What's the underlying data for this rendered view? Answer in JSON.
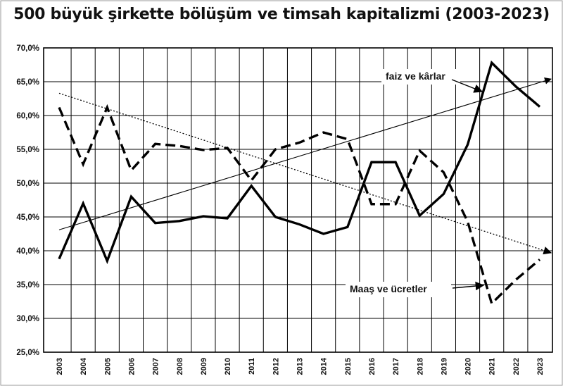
{
  "chart_data": {
    "type": "line",
    "title": "500 büyük şirkette bölüşüm ve timsah kapitalizmi (2003-2023)",
    "xlabel": "",
    "ylabel": "",
    "x": [
      "2003",
      "2004",
      "2005",
      "2006",
      "2007",
      "2008",
      "2009",
      "2010",
      "2011",
      "2012",
      "2013",
      "2014",
      "2015",
      "2016",
      "2017",
      "2018",
      "2019",
      "2020",
      "2021",
      "2022",
      "2023"
    ],
    "ylim": [
      25,
      70
    ],
    "yticks": [
      "25,0%",
      "30,0%",
      "35,0%",
      "40,0%",
      "45,0%",
      "50,0%",
      "55,0%",
      "60,0%",
      "65,0%",
      "70,0%"
    ],
    "grid": true,
    "series": [
      {
        "name": "faiz ve kârlar",
        "style": "solid",
        "color": "#000000",
        "values": [
          38.8,
          47.0,
          38.5,
          48.0,
          44.1,
          44.4,
          45.1,
          44.8,
          49.6,
          45.0,
          43.9,
          42.5,
          43.5,
          53.1,
          53.1,
          45.2,
          48.4,
          55.7,
          67.8,
          64.3,
          61.3
        ]
      },
      {
        "name": "Maaş ve ücretler",
        "style": "dashed",
        "color": "#000000",
        "values": [
          61.2,
          52.8,
          61.2,
          51.9,
          55.8,
          55.5,
          54.9,
          55.2,
          50.4,
          55.0,
          56.0,
          57.5,
          56.5,
          46.9,
          46.9,
          54.8,
          51.6,
          44.3,
          32.2,
          35.7,
          38.7
        ]
      }
    ],
    "trendlines": [
      {
        "style": "solid-thin",
        "from": [
          "2003",
          43.1
        ],
        "to": [
          "end",
          65.4
        ]
      },
      {
        "style": "dotted",
        "from": [
          "2003",
          63.3
        ],
        "to": [
          "end",
          39.7
        ]
      }
    ],
    "annotations": [
      {
        "text": "faiz ve kârlar",
        "points_to": "faiz ve kârlar"
      },
      {
        "text": "Maaş ve ücretler",
        "points_to": "Maaş ve ücretler"
      }
    ]
  }
}
